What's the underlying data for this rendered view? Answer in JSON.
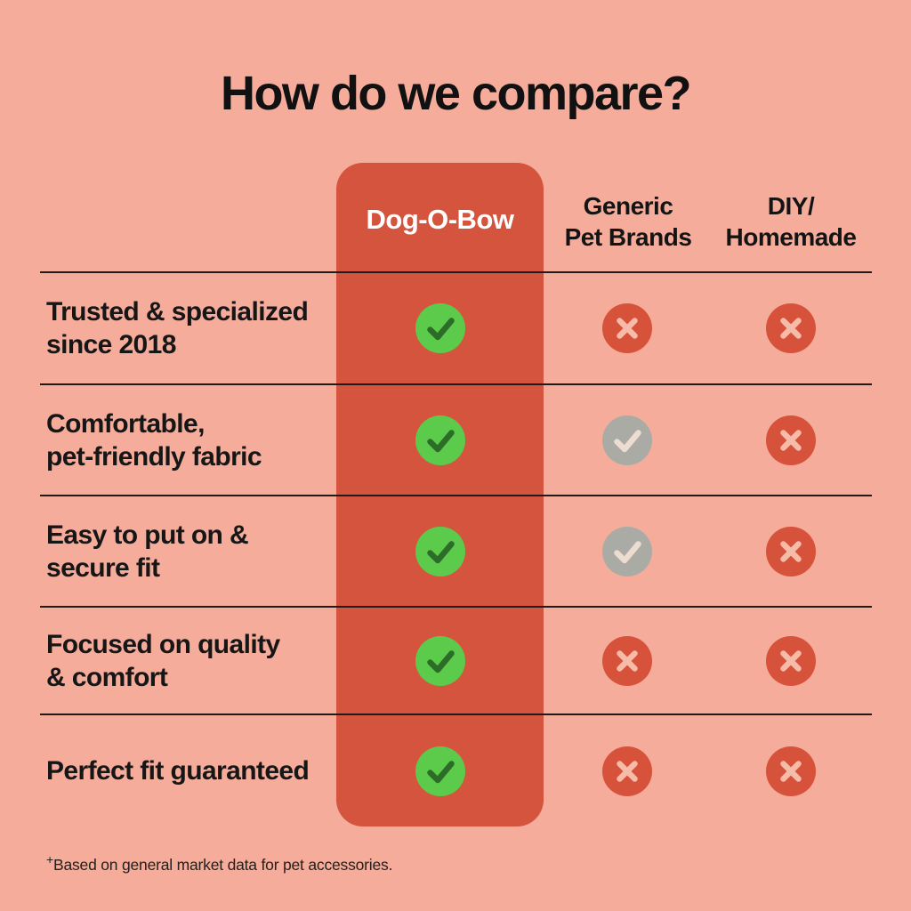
{
  "title": "How do we compare?",
  "columns": [
    {
      "label": "Dog-O-Bow",
      "highlight": true
    },
    {
      "label": "Generic\nPet Brands",
      "highlight": false
    },
    {
      "label": "DIY/\nHomemade",
      "highlight": false
    }
  ],
  "rows": [
    {
      "label": "Trusted & specialized\nsince 2018",
      "cells": [
        "check-green",
        "cross-red",
        "cross-red"
      ]
    },
    {
      "label": "Comfortable,\npet-friendly fabric",
      "cells": [
        "check-green",
        "check-gray",
        "cross-red"
      ]
    },
    {
      "label": "Easy to put on &\nsecure fit",
      "cells": [
        "check-green",
        "check-gray",
        "cross-red"
      ]
    },
    {
      "label": "Focused on quality\n& comfort",
      "cells": [
        "check-green",
        "cross-red",
        "cross-red"
      ]
    },
    {
      "label": "Perfect fit guaranteed",
      "cells": [
        "check-green",
        "cross-red",
        "cross-red"
      ]
    }
  ],
  "footnote": {
    "sup": "+",
    "text": "Based on general market data for pet accessories."
  },
  "icons": {
    "check-green": "green-check-icon",
    "check-gray": "gray-check-icon",
    "cross-red": "red-cross-icon"
  },
  "colors": {
    "background": "#F5AC9B",
    "highlight_column": "#D4543E",
    "title_text": "#111111",
    "header_text": "#141414",
    "row_text": "#161616",
    "divider": "#1F1B18",
    "brand_header_text": "#FFFFFF",
    "green_circle": "#5CCB4B",
    "green_check": "#2D6B28",
    "gray_circle": "#ABABA5",
    "gray_check": "#EDDCD0",
    "red_circle": "#D7523B",
    "red_cross": "#F6BCA9"
  }
}
